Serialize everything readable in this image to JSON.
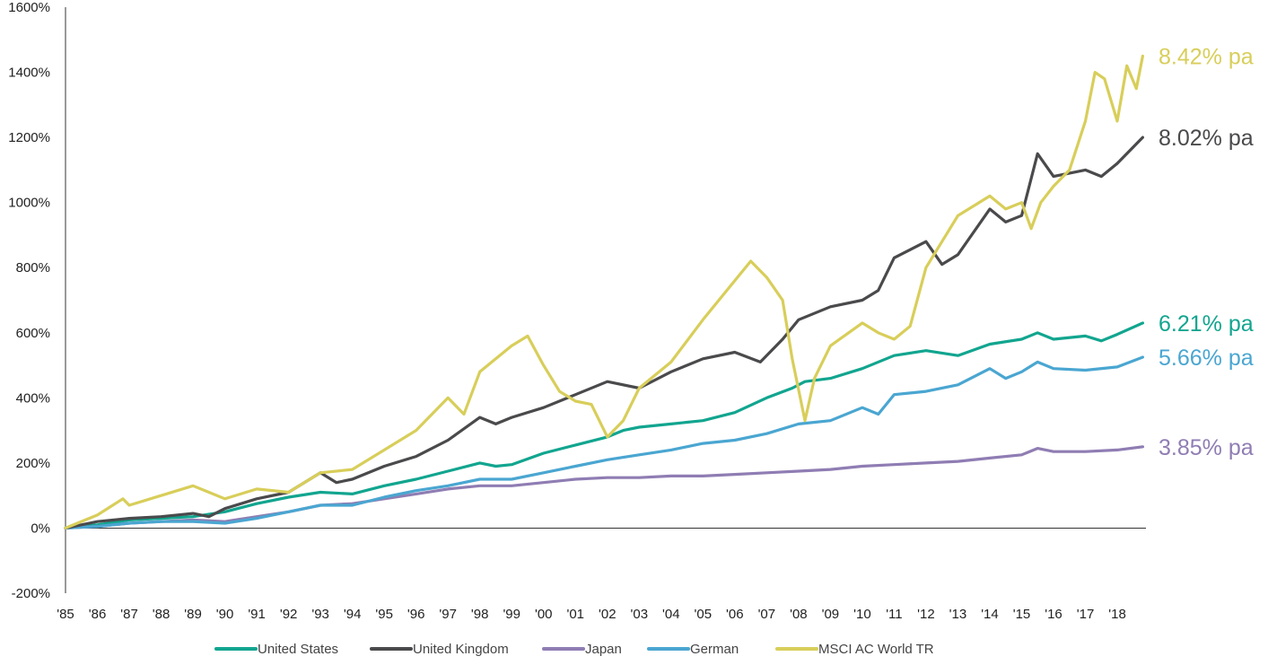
{
  "chart_data": {
    "type": "line",
    "title": "",
    "xlabel": "",
    "ylabel": "",
    "x_range": [
      1985,
      2018.9
    ],
    "ylim": [
      -200,
      1600
    ],
    "y_ticks": [
      -200,
      0,
      200,
      400,
      600,
      800,
      1000,
      1200,
      1400,
      1600
    ],
    "y_tick_labels": [
      "-200%",
      "0%",
      "200%",
      "400%",
      "600%",
      "800%",
      "1000%",
      "1200%",
      "1400%",
      "1600%"
    ],
    "x_ticks": [
      1985,
      1986,
      1987,
      1988,
      1989,
      1990,
      1991,
      1992,
      1993,
      1994,
      1995,
      1996,
      1997,
      1998,
      1999,
      2000,
      2001,
      2002,
      2003,
      2004,
      2005,
      2006,
      2007,
      2008,
      2009,
      2010,
      2011,
      2012,
      2013,
      2014,
      2015,
      2016,
      2017,
      2018
    ],
    "x_tick_labels": [
      "'85",
      "'86",
      "'87",
      "'88",
      "'89",
      "'90",
      "'91",
      "'92",
      "'93",
      "'94",
      "'95",
      "'96",
      "'97",
      "'98",
      "'99",
      "'00",
      "'01",
      "'02",
      "'03",
      "'04",
      "'05",
      "'06",
      "'07",
      "'08",
      "'09",
      "'10",
      "'11",
      "'12",
      "'13",
      "'14",
      "'15",
      "'16",
      "'17",
      "'18"
    ],
    "grid": false,
    "legend_position": "bottom",
    "series": [
      {
        "name": "United States",
        "color": "#12a58f",
        "end_label": "6.21% pa",
        "x": [
          1985,
          1986,
          1987,
          1988,
          1989,
          1990,
          1991,
          1992,
          1993,
          1994,
          1995,
          1996,
          1997,
          1998,
          1998.5,
          1999,
          2000,
          2001,
          2002,
          2002.5,
          2003,
          2004,
          2005,
          2006,
          2007,
          2007.8,
          2008.2,
          2009,
          2010,
          2011,
          2012,
          2013,
          2014,
          2015,
          2015.5,
          2016,
          2017,
          2017.5,
          2018,
          2018.8
        ],
        "values": [
          0,
          10,
          25,
          30,
          35,
          50,
          75,
          95,
          110,
          105,
          130,
          150,
          175,
          200,
          190,
          195,
          230,
          255,
          280,
          300,
          310,
          320,
          330,
          355,
          400,
          430,
          450,
          460,
          490,
          530,
          545,
          530,
          565,
          580,
          600,
          580,
          590,
          575,
          595,
          630
        ]
      },
      {
        "name": "United Kingdom",
        "color": "#4a4a4c",
        "end_label": "8.02% pa",
        "x": [
          1985,
          1986,
          1987,
          1988,
          1989,
          1989.5,
          1990,
          1991,
          1992,
          1993,
          1993.5,
          1994,
          1995,
          1996,
          1997,
          1998,
          1998.5,
          1999,
          2000,
          2001,
          2002,
          2003,
          2004,
          2005,
          2006,
          2006.8,
          2007.5,
          2008,
          2009,
          2010,
          2010.5,
          2011,
          2012,
          2012.5,
          2013,
          2014,
          2014.5,
          2015,
          2015.5,
          2016,
          2017,
          2017.5,
          2018,
          2018.8
        ],
        "values": [
          0,
          20,
          30,
          35,
          45,
          35,
          60,
          90,
          110,
          170,
          140,
          150,
          190,
          220,
          270,
          340,
          320,
          340,
          370,
          410,
          450,
          430,
          480,
          520,
          540,
          510,
          580,
          640,
          680,
          700,
          730,
          830,
          880,
          810,
          840,
          980,
          940,
          960,
          1150,
          1080,
          1100,
          1080,
          1120,
          1200
        ]
      },
      {
        "name": "Japan",
        "color": "#8f7db3",
        "end_label": "3.85% pa",
        "x": [
          1985,
          1986,
          1987,
          1988,
          1989,
          1990,
          1991,
          1992,
          1993,
          1994,
          1995,
          1996,
          1997,
          1998,
          1999,
          2000,
          2001,
          2002,
          2003,
          2004,
          2005,
          2006,
          2007,
          2008,
          2009,
          2010,
          2011,
          2012,
          2013,
          2014,
          2015,
          2015.5,
          2016,
          2017,
          2018,
          2018.8
        ],
        "values": [
          0,
          5,
          15,
          20,
          25,
          20,
          35,
          50,
          70,
          75,
          90,
          105,
          120,
          130,
          130,
          140,
          150,
          155,
          155,
          160,
          160,
          165,
          170,
          175,
          180,
          190,
          195,
          200,
          205,
          215,
          225,
          245,
          235,
          235,
          240,
          250
        ]
      },
      {
        "name": "German",
        "color": "#4aa6d1",
        "end_label": "5.66% pa",
        "x": [
          1985,
          1986,
          1987,
          1988,
          1989,
          1990,
          1991,
          1992,
          1993,
          1994,
          1995,
          1996,
          1997,
          1998,
          1999,
          2000,
          2001,
          2002,
          2003,
          2004,
          2005,
          2006,
          2007,
          2008,
          2009,
          2010,
          2010.5,
          2011,
          2012,
          2013,
          2014,
          2014.5,
          2015,
          2015.5,
          2016,
          2017,
          2018,
          2018.8
        ],
        "values": [
          0,
          5,
          15,
          20,
          20,
          15,
          30,
          50,
          70,
          70,
          95,
          115,
          130,
          150,
          150,
          170,
          190,
          210,
          225,
          240,
          260,
          270,
          290,
          320,
          330,
          370,
          350,
          410,
          420,
          440,
          490,
          460,
          480,
          510,
          490,
          485,
          495,
          525
        ]
      },
      {
        "name": "MSCI AC World TR",
        "color": "#d8ce5a",
        "end_label": "8.42% pa",
        "x": [
          1985,
          1986,
          1986.8,
          1987,
          1988,
          1989,
          1989.5,
          1990,
          1991,
          1992,
          1993,
          1994,
          1995,
          1996,
          1997,
          1997.5,
          1998,
          1999,
          1999.5,
          2000,
          2000.5,
          2001,
          2001.5,
          2002,
          2002.5,
          2003,
          2004,
          2005,
          2006,
          2006.5,
          2007,
          2007.5,
          2007.8,
          2008.2,
          2008.5,
          2009,
          2010,
          2010.5,
          2011,
          2011.5,
          2012,
          2013,
          2014,
          2014.5,
          2015,
          2015.3,
          2015.6,
          2016,
          2016.5,
          2017,
          2017.3,
          2017.6,
          2018,
          2018.3,
          2018.6,
          2018.8
        ],
        "values": [
          0,
          40,
          90,
          70,
          100,
          130,
          110,
          90,
          120,
          110,
          170,
          180,
          240,
          300,
          400,
          350,
          480,
          560,
          590,
          500,
          420,
          390,
          380,
          280,
          330,
          430,
          510,
          640,
          760,
          820,
          770,
          700,
          520,
          330,
          460,
          560,
          630,
          600,
          580,
          620,
          800,
          960,
          1020,
          980,
          1000,
          920,
          1000,
          1050,
          1100,
          1250,
          1400,
          1380,
          1250,
          1420,
          1350,
          1450
        ]
      }
    ]
  }
}
